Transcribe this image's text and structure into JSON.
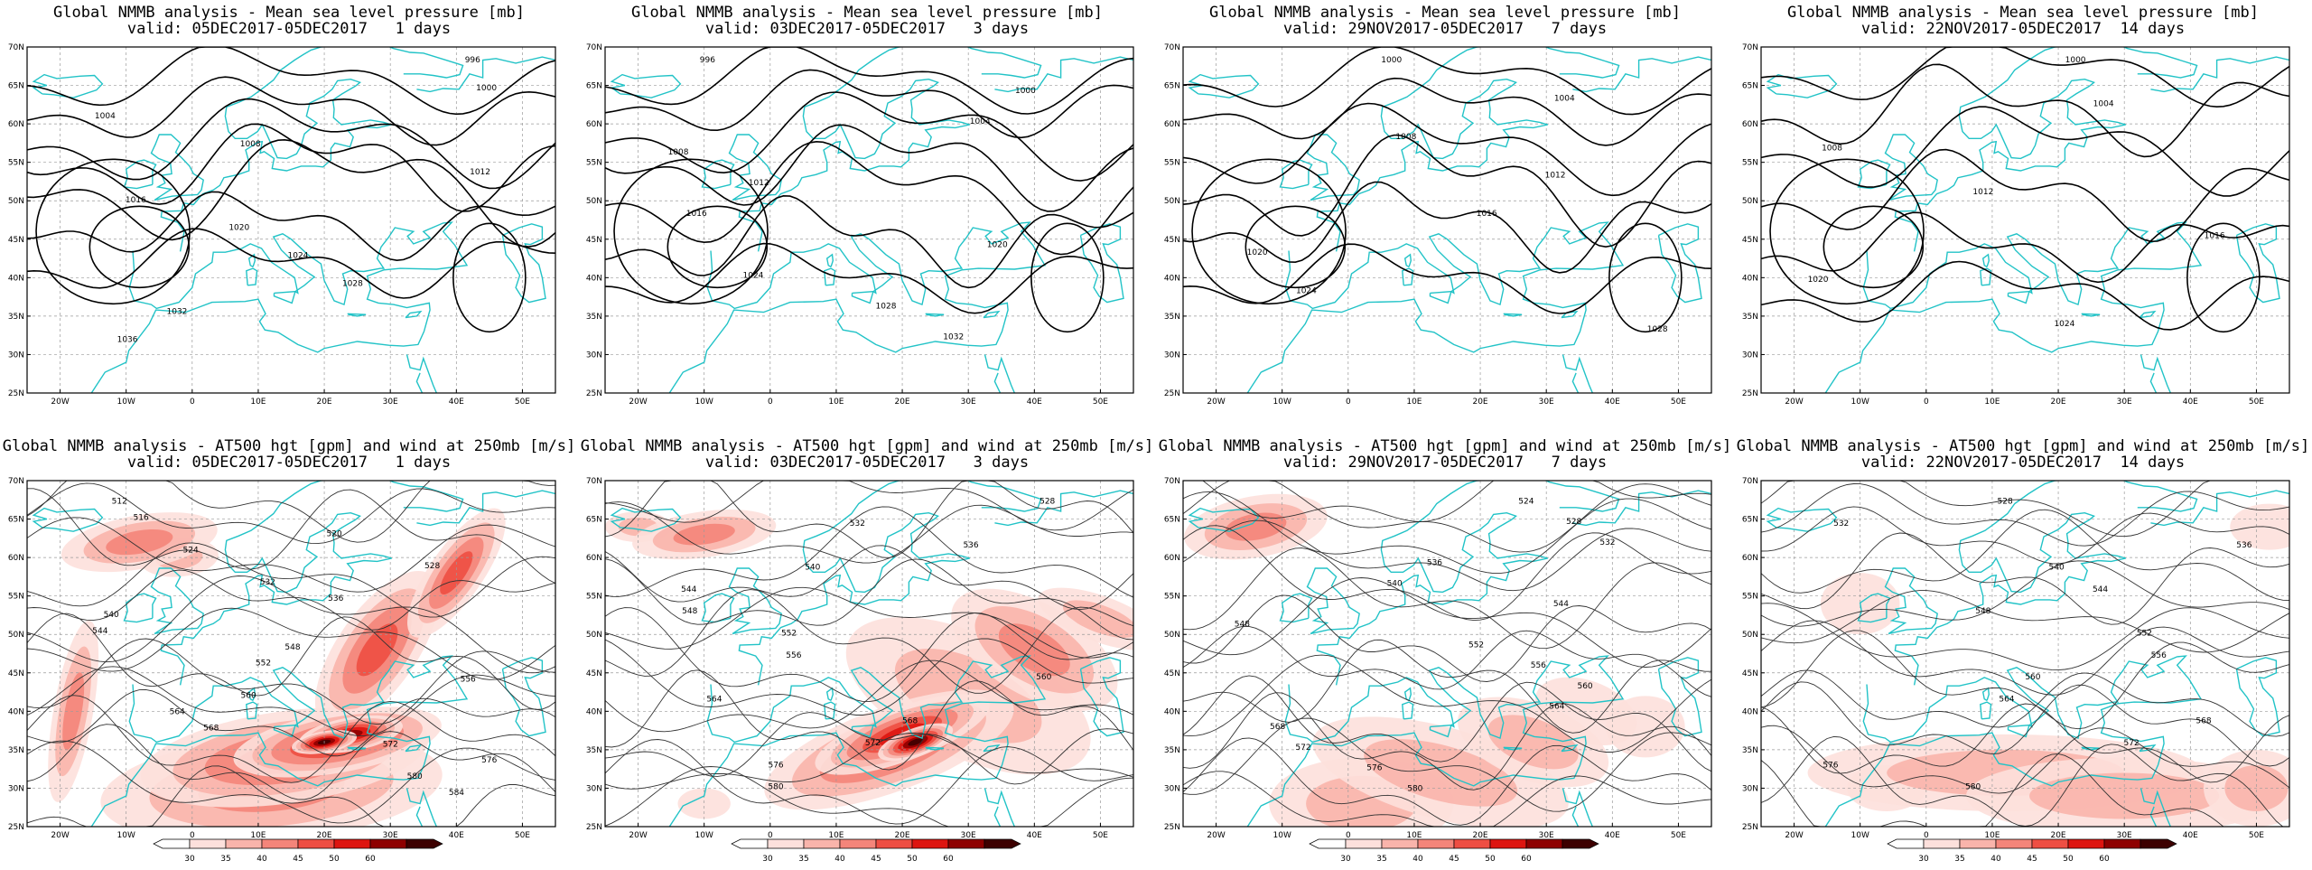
{
  "axes": {
    "lat_labels": [
      "70N",
      "65N",
      "60N",
      "55N",
      "50N",
      "45N",
      "40N",
      "35N",
      "30N",
      "25N"
    ],
    "lon_labels": [
      "20W",
      "10W",
      "0",
      "10E",
      "20E",
      "30E",
      "40E",
      "50E"
    ]
  },
  "top_row": [
    {
      "title": "Global NMMB analysis - Mean sea level pressure [mb]",
      "valid": "valid: 05DEC2017-05DEC2017   1 days",
      "isobars": [
        "996",
        "1000",
        "1004",
        "1008",
        "1012",
        "1016",
        "1020",
        "1024",
        "1028",
        "1032",
        "1036"
      ]
    },
    {
      "title": "Global NMMB analysis - Mean sea level pressure [mb]",
      "valid": "valid: 03DEC2017-05DEC2017   3 days",
      "isobars": [
        "996",
        "1000",
        "1004",
        "1008",
        "1012",
        "1016",
        "1020",
        "1024",
        "1028",
        "1032"
      ]
    },
    {
      "title": "Global NMMB analysis - Mean sea level pressure [mb]",
      "valid": "valid: 29NOV2017-05DEC2017   7 days",
      "isobars": [
        "1000",
        "1004",
        "1008",
        "1012",
        "1016",
        "1020",
        "1024",
        "1028"
      ]
    },
    {
      "title": "Global NMMB analysis - Mean sea level pressure [mb]",
      "valid": "valid: 22NOV2017-05DEC2017  14 days",
      "isobars": [
        "1000",
        "1004",
        "1008",
        "1012",
        "1016",
        "1020",
        "1024"
      ]
    }
  ],
  "bottom_row": [
    {
      "title": "Global NMMB analysis - AT500 hgt [gpm] and wind at 250mb [m/s]",
      "valid": "valid: 05DEC2017-05DEC2017   1 days",
      "heights": [
        "512",
        "516",
        "520",
        "524",
        "528",
        "532",
        "536",
        "540",
        "544",
        "548",
        "552",
        "556",
        "560",
        "564",
        "568",
        "572",
        "576",
        "580",
        "584"
      ]
    },
    {
      "title": "Global NMMB analysis - AT500 hgt [gpm] and wind at 250mb [m/s]",
      "valid": "valid: 03DEC2017-05DEC2017   3 days",
      "heights": [
        "528",
        "532",
        "536",
        "540",
        "544",
        "548",
        "552",
        "556",
        "560",
        "564",
        "568",
        "572",
        "576",
        "580"
      ]
    },
    {
      "title": "Global NMMB analysis - AT500 hgt [gpm] and wind at 250mb [m/s]",
      "valid": "valid: 29NOV2017-05DEC2017   7 days",
      "heights": [
        "524",
        "528",
        "532",
        "536",
        "540",
        "544",
        "548",
        "552",
        "556",
        "560",
        "564",
        "568",
        "572",
        "576",
        "580"
      ]
    },
    {
      "title": "Global NMMB analysis - AT500 hgt [gpm] and wind at 250mb [m/s]",
      "valid": "valid: 22NOV2017-05DEC2017  14 days",
      "heights": [
        "528",
        "532",
        "536",
        "540",
        "544",
        "548",
        "552",
        "556",
        "560",
        "564",
        "568",
        "572",
        "576",
        "580"
      ]
    }
  ],
  "colorbar": {
    "labels": [
      "30",
      "35",
      "40",
      "45",
      "50",
      "60"
    ],
    "colors": [
      "#ffffff",
      "#fde0dc",
      "#f9b4ab",
      "#f4857a",
      "#ee4e43",
      "#dd1510",
      "#8e0000",
      "#3d0000"
    ]
  },
  "colors": {
    "coast": "#22c3c7",
    "contour": "#000000",
    "grid": "#9a9a9a"
  }
}
